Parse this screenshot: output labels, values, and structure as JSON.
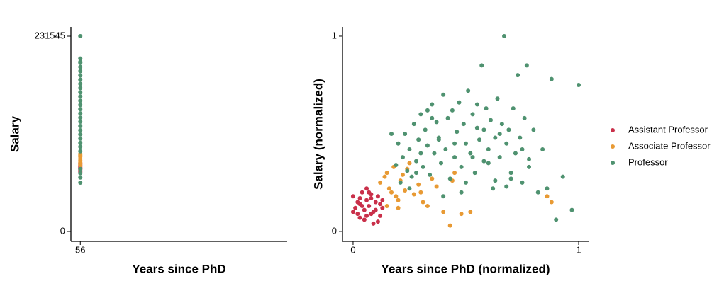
{
  "chart_data": [
    {
      "type": "scatter",
      "xlabel": "Years since PhD",
      "ylabel": "Salary",
      "xlim": [
        55.5,
        67
      ],
      "xticks": [
        56
      ],
      "ylim": [
        -11745,
        242451
      ],
      "yticks": [
        0,
        231545
      ],
      "series": [
        {
          "color": "#c9304a",
          "x": [
            56,
            56,
            56,
            56,
            56,
            56,
            56,
            56
          ],
          "values": [
            70500,
            72000,
            73800,
            75000,
            76200,
            77500,
            79000,
            80800
          ]
        },
        {
          "color": "#e89a34",
          "x": [
            56,
            56,
            56,
            56,
            56,
            56,
            56,
            56
          ],
          "values": [
            78500,
            80200,
            82000,
            84000,
            86000,
            88500,
            90500,
            92000
          ]
        },
        {
          "color": "#4f9270",
          "x": [
            56,
            56,
            56,
            56,
            56,
            56,
            56,
            56,
            56,
            56,
            56,
            56,
            56,
            56,
            56,
            56,
            56,
            56,
            56,
            56,
            56,
            56,
            56,
            56,
            56,
            56,
            56,
            56,
            56
          ],
          "values": [
            57886,
            64000,
            69000,
            74000,
            95000,
            100500,
            105000,
            110000,
            115000,
            120000,
            125000,
            130000,
            135000,
            140000,
            145000,
            150000,
            155000,
            160000,
            165000,
            170000,
            175000,
            180000,
            185000,
            190000,
            195000,
            200000,
            201000,
            205000,
            231545
          ]
        }
      ]
    },
    {
      "type": "scatter",
      "xlabel": "Years since PhD (normalized)",
      "ylabel": "Salary (normalized)",
      "xlim": [
        -0.047,
        1.044
      ],
      "xticks": [
        0,
        1
      ],
      "ylim": [
        -0.051,
        1.047
      ],
      "yticks": [
        0,
        1
      ],
      "legend": "right",
      "series": [
        {
          "name": "Assistant Professor",
          "color": "#c9304a",
          "x": [
            0.0,
            0.01,
            0.02,
            0.03,
            0.03,
            0.04,
            0.05,
            0.05,
            0.06,
            0.06,
            0.07,
            0.08,
            0.08,
            0.09,
            0.1,
            0.1,
            0.11,
            0.12,
            0.12,
            0.13,
            0.0,
            0.02,
            0.04,
            0.07,
            0.09,
            0.11,
            0.13,
            0.06,
            0.03,
            0.08
          ],
          "values": [
            0.18,
            0.12,
            0.09,
            0.17,
            0.14,
            0.2,
            0.11,
            0.06,
            0.16,
            0.22,
            0.13,
            0.09,
            0.19,
            0.04,
            0.15,
            0.11,
            0.18,
            0.08,
            0.14,
            0.12,
            0.1,
            0.15,
            0.13,
            0.2,
            0.1,
            0.05,
            0.16,
            0.08,
            0.07,
            0.17
          ]
        },
        {
          "name": "Associate Professor",
          "color": "#e89a34",
          "x": [
            0.12,
            0.14,
            0.15,
            0.16,
            0.17,
            0.18,
            0.19,
            0.2,
            0.21,
            0.22,
            0.23,
            0.25,
            0.27,
            0.29,
            0.31,
            0.33,
            0.35,
            0.37,
            0.4,
            0.43,
            0.45,
            0.48,
            0.52,
            0.2,
            0.24,
            0.3,
            0.44,
            0.86,
            0.88,
            0.15
          ],
          "values": [
            0.25,
            0.28,
            0.3,
            0.22,
            0.2,
            0.33,
            0.18,
            0.12,
            0.26,
            0.29,
            0.21,
            0.35,
            0.19,
            0.24,
            0.15,
            0.13,
            0.27,
            0.23,
            0.1,
            0.03,
            0.3,
            0.09,
            0.1,
            0.16,
            0.32,
            0.2,
            0.26,
            0.18,
            0.15,
            0.13
          ]
        },
        {
          "name": "Professor",
          "color": "#4f9270",
          "x": [
            0.17,
            0.19,
            0.2,
            0.21,
            0.22,
            0.23,
            0.24,
            0.25,
            0.26,
            0.27,
            0.28,
            0.29,
            0.3,
            0.31,
            0.32,
            0.33,
            0.34,
            0.35,
            0.36,
            0.37,
            0.38,
            0.39,
            0.4,
            0.41,
            0.42,
            0.43,
            0.44,
            0.45,
            0.46,
            0.47,
            0.48,
            0.49,
            0.5,
            0.51,
            0.52,
            0.53,
            0.54,
            0.55,
            0.56,
            0.57,
            0.58,
            0.59,
            0.6,
            0.61,
            0.62,
            0.63,
            0.64,
            0.65,
            0.66,
            0.67,
            0.68,
            0.69,
            0.7,
            0.71,
            0.72,
            0.73,
            0.74,
            0.75,
            0.76,
            0.77,
            0.78,
            0.8,
            0.82,
            0.84,
            0.86,
            0.88,
            0.9,
            0.93,
            0.97,
            1.0,
            0.25,
            0.3,
            0.35,
            0.4,
            0.45,
            0.5,
            0.55,
            0.6,
            0.65,
            0.7,
            0.75,
            0.28,
            0.38,
            0.48,
            0.58,
            0.68,
            0.78,
            0.33,
            0.53,
            0.63
          ],
          "values": [
            0.5,
            0.34,
            0.45,
            0.25,
            0.38,
            0.5,
            0.31,
            0.42,
            0.28,
            0.55,
            0.36,
            0.47,
            0.6,
            0.33,
            0.52,
            0.44,
            0.29,
            0.65,
            0.4,
            0.56,
            0.48,
            0.35,
            0.7,
            0.42,
            0.58,
            0.27,
            0.62,
            0.38,
            0.51,
            0.66,
            0.33,
            0.55,
            0.45,
            0.72,
            0.4,
            0.6,
            0.3,
            0.53,
            0.47,
            0.85,
            0.36,
            0.63,
            0.42,
            0.57,
            0.22,
            0.48,
            0.68,
            0.38,
            0.55,
            1.0,
            0.45,
            0.52,
            0.3,
            0.63,
            0.4,
            0.8,
            0.48,
            0.25,
            0.58,
            0.85,
            0.37,
            0.52,
            0.2,
            0.42,
            0.22,
            0.78,
            0.06,
            0.28,
            0.11,
            0.75,
            0.22,
            0.4,
            0.58,
            0.18,
            0.45,
            0.25,
            0.65,
            0.35,
            0.5,
            0.27,
            0.42,
            0.3,
            0.47,
            0.2,
            0.52,
            0.23,
            0.33,
            0.62,
            0.38,
            0.26
          ]
        }
      ]
    }
  ]
}
